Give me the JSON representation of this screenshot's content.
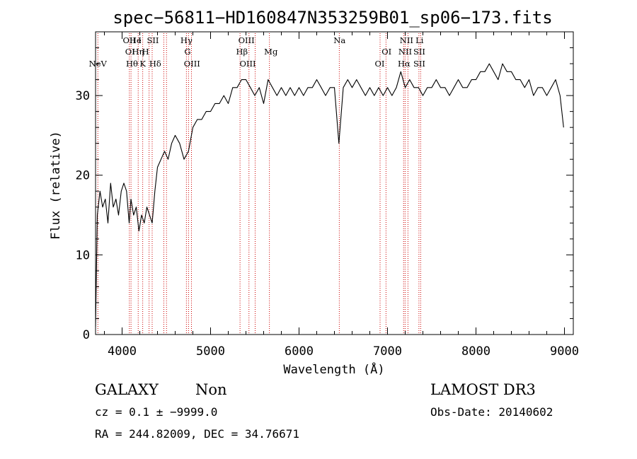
{
  "chart_data": {
    "type": "line",
    "title": "spec−56811−HD160847N353259B01_sp06−173.fits",
    "xlabel": "Wavelength (Å)",
    "ylabel": "Flux (relative)",
    "xlim": [
      3700,
      9100
    ],
    "ylim": [
      0,
      38
    ],
    "xticks": [
      {
        "value": 4000,
        "label": "4000"
      },
      {
        "value": 5000,
        "label": "5000"
      },
      {
        "value": 6000,
        "label": "6000"
      },
      {
        "value": 7000,
        "label": "7000"
      },
      {
        "value": 8000,
        "label": "8000"
      },
      {
        "value": 9000,
        "label": "9000"
      }
    ],
    "yticks": [
      {
        "value": 0,
        "label": "0"
      },
      {
        "value": 10,
        "label": "10"
      },
      {
        "value": 20,
        "label": "20"
      },
      {
        "value": 30,
        "label": "30"
      }
    ],
    "grid": false,
    "series": [
      {
        "color": "#000000",
        "x": [
          3700,
          3720,
          3750,
          3780,
          3810,
          3840,
          3870,
          3900,
          3930,
          3960,
          3990,
          4020,
          4050,
          4080,
          4100,
          4130,
          4160,
          4190,
          4220,
          4250,
          4280,
          4310,
          4340,
          4370,
          4400,
          4440,
          4480,
          4520,
          4560,
          4600,
          4650,
          4700,
          4750,
          4800,
          4850,
          4900,
          4950,
          5000,
          5050,
          5100,
          5150,
          5200,
          5250,
          5300,
          5350,
          5400,
          5450,
          5500,
          5550,
          5600,
          5650,
          5700,
          5750,
          5800,
          5850,
          5900,
          5950,
          6000,
          6050,
          6100,
          6150,
          6200,
          6250,
          6300,
          6350,
          6400,
          6450,
          6500,
          6550,
          6600,
          6650,
          6700,
          6750,
          6800,
          6850,
          6900,
          6950,
          7000,
          7050,
          7100,
          7150,
          7200,
          7250,
          7300,
          7350,
          7400,
          7450,
          7500,
          7550,
          7600,
          7650,
          7700,
          7750,
          7800,
          7850,
          7900,
          7950,
          8000,
          8050,
          8100,
          8150,
          8200,
          8250,
          8300,
          8350,
          8400,
          8450,
          8500,
          8550,
          8600,
          8650,
          8700,
          8750,
          8800,
          8850,
          8900,
          8950,
          8990
        ],
        "y": [
          1,
          15,
          18,
          16,
          17,
          14,
          19,
          16,
          17,
          15,
          18,
          19,
          18,
          14,
          17,
          15,
          16,
          13,
          15,
          14,
          16,
          15,
          14,
          18,
          21,
          22,
          23,
          22,
          24,
          25,
          24,
          22,
          23,
          26,
          27,
          27,
          28,
          28,
          29,
          29,
          30,
          29,
          31,
          31,
          32,
          32,
          31,
          30,
          31,
          29,
          32,
          31,
          30,
          31,
          30,
          31,
          30,
          31,
          30,
          31,
          31,
          32,
          31,
          30,
          31,
          31,
          24,
          31,
          32,
          31,
          32,
          31,
          30,
          31,
          30,
          31,
          30,
          31,
          30,
          31,
          33,
          31,
          32,
          31,
          31,
          30,
          31,
          31,
          32,
          31,
          31,
          30,
          31,
          32,
          31,
          31,
          32,
          32,
          33,
          33,
          34,
          33,
          32,
          34,
          33,
          33,
          32,
          32,
          31,
          32,
          30,
          31,
          31,
          30,
          31,
          32,
          30,
          26
        ]
      }
    ],
    "spectral_lines": [
      {
        "label": "NeV",
        "x": 3726,
        "row": 3
      },
      {
        "label": "OII",
        "x": 4082,
        "row": 1
      },
      {
        "label": "OI",
        "x": 4090,
        "row": 2
      },
      {
        "label": "Hθ",
        "x": 4112,
        "row": 3
      },
      {
        "label": "He",
        "x": 4150,
        "row": 1
      },
      {
        "label": "Hη",
        "x": 4180,
        "row": 2
      },
      {
        "label": "I",
        "x": 4200,
        "row": 1
      },
      {
        "label": "K",
        "x": 4233,
        "row": 3
      },
      {
        "label": "H",
        "x": 4265,
        "row": 2
      },
      {
        "label": "SII",
        "x": 4348,
        "row": 1
      },
      {
        "label": "Hδ",
        "x": 4375,
        "row": 3
      },
      {
        "label": "Hγ",
        "x": 4727,
        "row": 1
      },
      {
        "label": "G",
        "x": 4740,
        "row": 2
      },
      {
        "label": "OIII",
        "x": 4790,
        "row": 3
      },
      {
        "label": "Hβ",
        "x": 5355,
        "row": 2
      },
      {
        "label": "OIII",
        "x": 5405,
        "row": 1
      },
      {
        "label": "OIII",
        "x": 5420,
        "row": 3
      },
      {
        "label": "Mg",
        "x": 5682,
        "row": 2
      },
      {
        "label": "Na",
        "x": 6458,
        "row": 1
      },
      {
        "label": "OI",
        "x": 6912,
        "row": 3
      },
      {
        "label": "OI",
        "x": 6990,
        "row": 2
      },
      {
        "label": "NII",
        "x": 7215,
        "row": 1
      },
      {
        "label": "NII",
        "x": 7200,
        "row": 2
      },
      {
        "label": "Hα",
        "x": 7187,
        "row": 3
      },
      {
        "label": "Li",
        "x": 7362,
        "row": 1
      },
      {
        "label": "SII",
        "x": 7360,
        "row": 2
      },
      {
        "label": "SII",
        "x": 7360,
        "row": 3
      }
    ],
    "spectral_line_positions": [
      3726,
      4082,
      4101,
      4182,
      4233,
      4305,
      4340,
      4472,
      4502,
      4727,
      4751,
      4784,
      5333,
      5434,
      5504,
      5665,
      6455,
      6916,
      6983,
      7182,
      7199,
      7231,
      7355,
      7375
    ],
    "line_color": "#cc0000"
  },
  "info": {
    "object_class": "GALAXY",
    "subclass": "Non",
    "survey": "LAMOST DR3",
    "cz": "cz = 0.1 ± −9999.0",
    "obs_date": "Obs-Date: 20140602",
    "coords": "RA = 244.82009, DEC =  34.76671"
  }
}
